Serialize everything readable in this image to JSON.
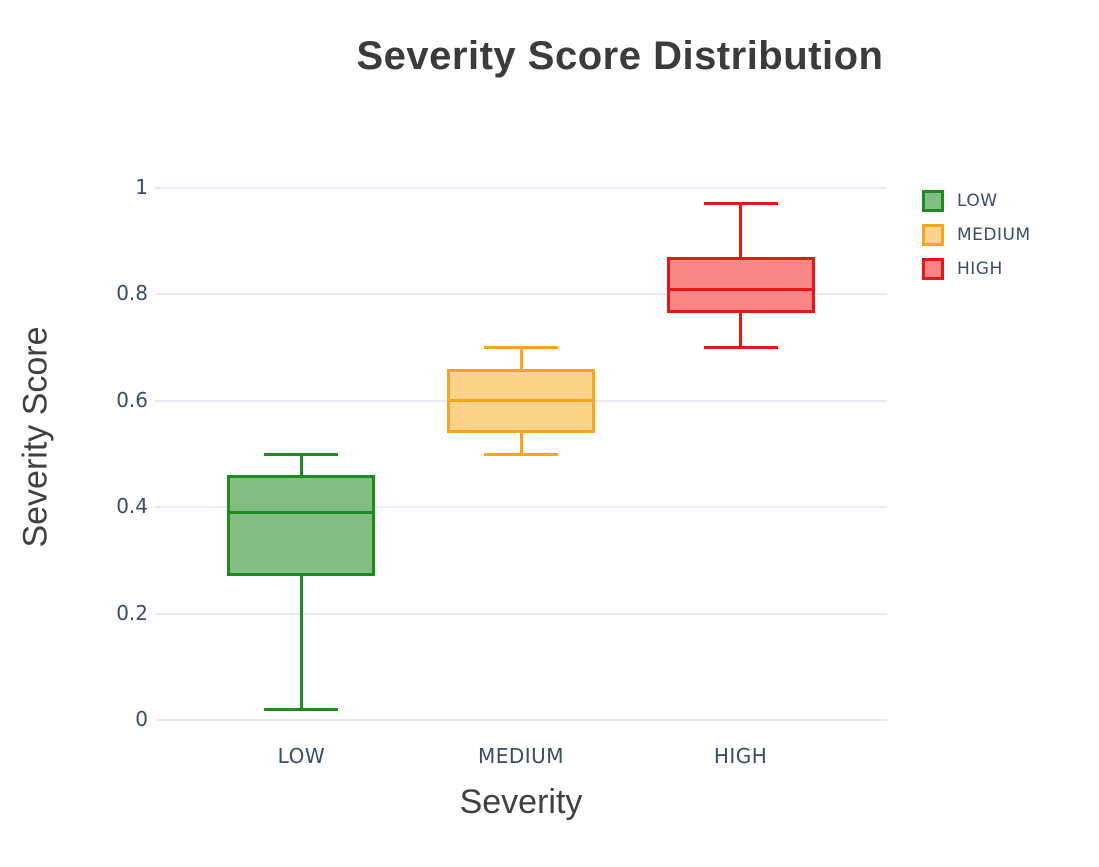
{
  "chart_data": {
    "type": "box",
    "title": "Severity Score Distribution",
    "xlabel": "Severity",
    "ylabel": "Severity Score",
    "ylim": [
      0,
      1
    ],
    "yticks": [
      "0",
      "0.2",
      "0.4",
      "0.6",
      "0.8",
      "1"
    ],
    "ytick_values": [
      0,
      0.2,
      0.4,
      0.6,
      0.8,
      1
    ],
    "categories": [
      "LOW",
      "MEDIUM",
      "HIGH"
    ],
    "grid": "horizontal only",
    "legend_position": "outside top-right",
    "series": [
      {
        "name": "LOW",
        "min": 0.02,
        "q1": 0.27,
        "median": 0.39,
        "q3": 0.46,
        "max": 0.5,
        "fill_color": "#80BF81",
        "line_color": "#1E8B1E"
      },
      {
        "name": "MEDIUM",
        "min": 0.5,
        "q1": 0.54,
        "median": 0.6,
        "q3": 0.66,
        "max": 0.7,
        "fill_color": "#FCD38A",
        "line_color": "#F8A51E"
      },
      {
        "name": "HIGH",
        "min": 0.7,
        "q1": 0.765,
        "median": 0.81,
        "q3": 0.87,
        "max": 0.97,
        "fill_color": "#FA8585",
        "line_color": "#E61717"
      }
    ],
    "colors": {
      "title_text": "#3B3B3B",
      "axis_title_text": "#404040",
      "tick_text": "#3D4C66",
      "legend_text": "#3D4C66",
      "gridline": "#E7EBF2",
      "background": "#FFFFFF"
    }
  }
}
